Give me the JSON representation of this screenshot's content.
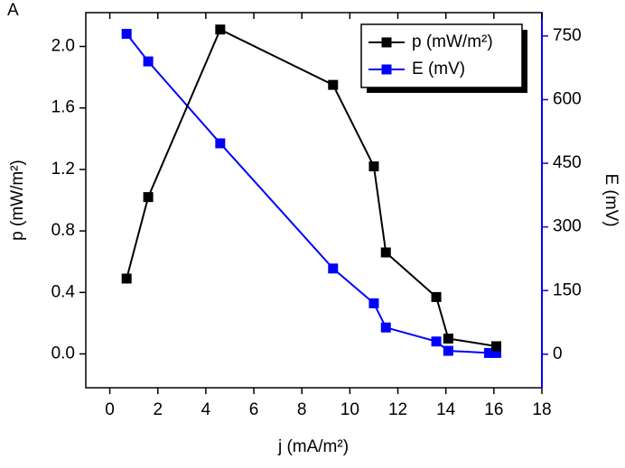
{
  "chart_data": {
    "type": "line",
    "panel_label": "A",
    "x_label": "j (mA/m²)",
    "y_label": "p (mW/m²)",
    "y2_label": "E (mV)",
    "xlim": [
      -1,
      18
    ],
    "xticks": [
      0,
      2,
      4,
      6,
      8,
      10,
      12,
      14,
      16,
      18
    ],
    "ylim": [
      -0.22,
      2.22
    ],
    "yticks": [
      {
        "value": 0,
        "label": "0.0"
      },
      0.4,
      0.8,
      1.2,
      1.6,
      {
        "value": 2,
        "label": "2.0"
      }
    ],
    "y2lim": [
      -79,
      805
    ],
    "y2ticks": [
      0,
      150,
      300,
      450,
      600,
      750
    ],
    "y2_color": "#0000ff",
    "legend_position": "upper right",
    "series": [
      {
        "name": "p (mW/m²)",
        "color": "#000000",
        "x": [
          0.7,
          1.6,
          4.6,
          9.3,
          11.0,
          11.5,
          13.6,
          14.1,
          16.1
        ],
        "values": [
          0.49,
          1.02,
          2.11,
          1.75,
          1.22,
          0.66,
          0.37,
          0.1,
          0.05
        ]
      },
      {
        "name": "E (mV)",
        "color": "#0000ff",
        "axis": "y2",
        "x": [
          0.7,
          1.6,
          4.6,
          9.3,
          11.0,
          11.5,
          13.6,
          14.1,
          15.8,
          16.1
        ],
        "values": [
          755,
          690,
          497,
          202,
          120,
          63,
          30,
          8,
          3,
          3
        ]
      }
    ]
  }
}
